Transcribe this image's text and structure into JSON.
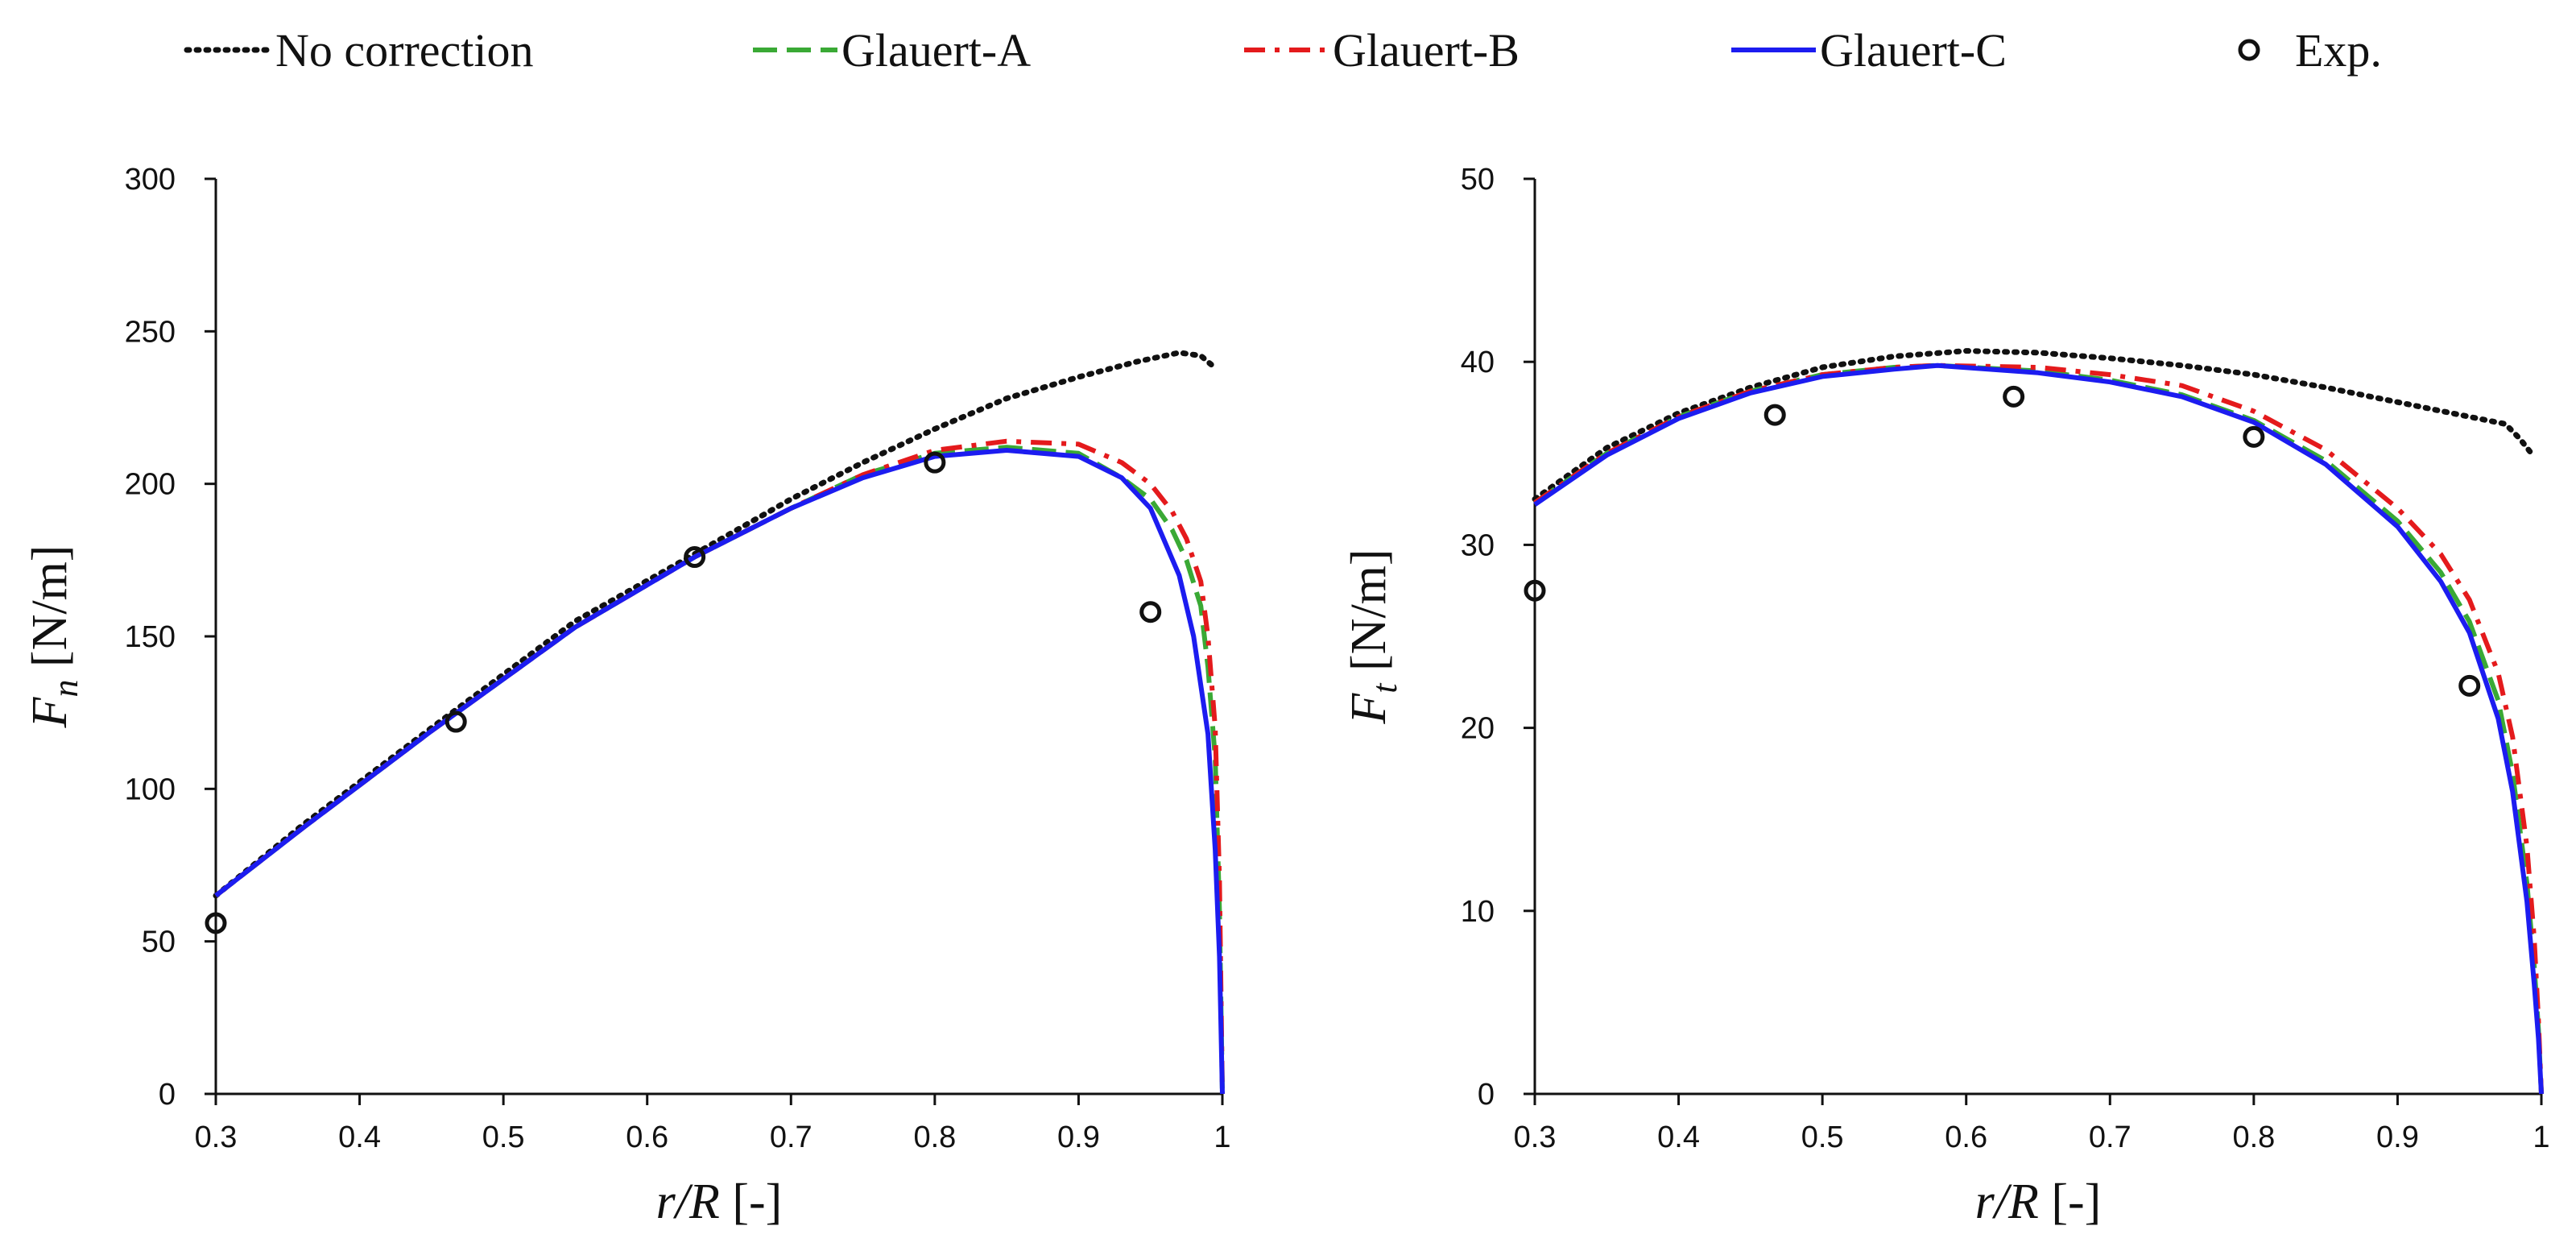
{
  "legend": [
    {
      "label": "No correction",
      "color": "#111111",
      "dash": "dotted"
    },
    {
      "label": "Glauert-A",
      "color": "#3aa935",
      "dash": "longdash"
    },
    {
      "label": "Glauert-B",
      "color": "#e41a1c",
      "dash": "dashdot"
    },
    {
      "label": "Glauert-C",
      "color": "#1c1cf0",
      "dash": "solid"
    },
    {
      "label": "Exp.",
      "color": "#111111",
      "dash": "marker"
    }
  ],
  "chart_data": [
    {
      "type": "line",
      "title": "",
      "xlabel_var": "r/R",
      "xlabel_unit": "[-]",
      "ylabel_var": "F",
      "ylabel_sub": "n",
      "ylabel_unit": "[N/m]",
      "xlim": [
        0.3,
        1.0
      ],
      "ylim": [
        0,
        300
      ],
      "xticks": [
        0.3,
        0.4,
        0.5,
        0.6,
        0.7,
        0.8,
        0.9,
        1
      ],
      "xtick_labels": [
        "0.3",
        "0.4",
        "0.5",
        "0.6",
        "0.7",
        "0.8",
        "0.9",
        "1"
      ],
      "yticks": [
        0,
        50,
        100,
        150,
        200,
        250,
        300
      ],
      "ytick_labels": [
        "0",
        "50",
        "100",
        "150",
        "200",
        "250",
        "300"
      ],
      "series": [
        {
          "name": "No correction",
          "x": [
            0.3,
            0.36,
            0.45,
            0.55,
            0.633,
            0.7,
            0.75,
            0.8,
            0.85,
            0.9,
            0.94,
            0.97,
            0.985,
            0.995
          ],
          "y": [
            65,
            88,
            120,
            155,
            177,
            195,
            207,
            218,
            228,
            235,
            240,
            243,
            242,
            238
          ]
        },
        {
          "name": "Glauert-A",
          "x": [
            0.3,
            0.36,
            0.45,
            0.55,
            0.633,
            0.7,
            0.75,
            0.8,
            0.85,
            0.9,
            0.93,
            0.95,
            0.965,
            0.975,
            0.985,
            0.99,
            0.995,
            0.998,
            1.0
          ],
          "y": [
            65,
            87,
            119,
            153,
            176,
            192,
            203,
            210,
            212,
            210,
            202,
            195,
            185,
            175,
            160,
            140,
            110,
            60,
            0
          ]
        },
        {
          "name": "Glauert-B",
          "x": [
            0.3,
            0.36,
            0.45,
            0.55,
            0.633,
            0.7,
            0.75,
            0.8,
            0.85,
            0.9,
            0.93,
            0.95,
            0.965,
            0.975,
            0.985,
            0.99,
            0.995,
            0.998,
            1.0
          ],
          "y": [
            65,
            87,
            119,
            153,
            176,
            192,
            203,
            211,
            214,
            213,
            207,
            200,
            191,
            182,
            168,
            150,
            120,
            70,
            0
          ]
        },
        {
          "name": "Glauert-C",
          "x": [
            0.3,
            0.36,
            0.45,
            0.55,
            0.633,
            0.7,
            0.75,
            0.8,
            0.85,
            0.9,
            0.93,
            0.95,
            0.97,
            0.98,
            0.99,
            0.995,
            0.998,
            1.0
          ],
          "y": [
            65,
            87,
            119,
            153,
            176,
            192,
            202,
            209,
            211,
            209,
            202,
            192,
            170,
            150,
            118,
            80,
            45,
            0
          ]
        }
      ],
      "experimental": {
        "name": "Exp.",
        "x": [
          0.3,
          0.467,
          0.633,
          0.8,
          0.95
        ],
        "y": [
          56,
          122,
          176,
          207,
          158
        ]
      }
    },
    {
      "type": "line",
      "title": "",
      "xlabel_var": "r/R",
      "xlabel_unit": "[-]",
      "ylabel_var": "F",
      "ylabel_sub": "t",
      "ylabel_unit": "[N/m]",
      "xlim": [
        0.3,
        1.0
      ],
      "ylim": [
        0,
        50
      ],
      "xticks": [
        0.3,
        0.4,
        0.5,
        0.6,
        0.7,
        0.8,
        0.9,
        1
      ],
      "xtick_labels": [
        "0.3",
        "0.4",
        "0.5",
        "0.6",
        "0.7",
        "0.8",
        "0.9",
        "1"
      ],
      "yticks": [
        0,
        10,
        20,
        30,
        40,
        50
      ],
      "ytick_labels": [
        "0",
        "10",
        "20",
        "30",
        "40",
        "50"
      ],
      "series": [
        {
          "name": "No correction",
          "x": [
            0.3,
            0.35,
            0.4,
            0.45,
            0.5,
            0.55,
            0.6,
            0.65,
            0.7,
            0.75,
            0.8,
            0.85,
            0.9,
            0.95,
            0.975,
            0.985,
            0.995
          ],
          "y": [
            32.5,
            35.3,
            37.2,
            38.6,
            39.7,
            40.3,
            40.6,
            40.5,
            40.2,
            39.8,
            39.3,
            38.6,
            37.8,
            37.0,
            36.6,
            35.8,
            34.8
          ]
        },
        {
          "name": "Glauert-A",
          "x": [
            0.3,
            0.35,
            0.4,
            0.45,
            0.5,
            0.55,
            0.58,
            0.65,
            0.7,
            0.75,
            0.8,
            0.85,
            0.9,
            0.93,
            0.95,
            0.97,
            0.98,
            0.99,
            0.995,
            0.998,
            1.0
          ],
          "y": [
            32.3,
            35.0,
            37.0,
            38.4,
            39.3,
            39.7,
            39.8,
            39.5,
            39.0,
            38.2,
            36.8,
            34.6,
            31.3,
            28.5,
            25.8,
            21.5,
            17.5,
            11.5,
            7.0,
            3.5,
            0
          ]
        },
        {
          "name": "Glauert-B",
          "x": [
            0.3,
            0.35,
            0.4,
            0.45,
            0.5,
            0.55,
            0.58,
            0.65,
            0.7,
            0.75,
            0.8,
            0.85,
            0.9,
            0.93,
            0.95,
            0.97,
            0.98,
            0.99,
            0.995,
            0.998,
            1.0
          ],
          "y": [
            32.3,
            35.0,
            37.0,
            38.4,
            39.3,
            39.7,
            39.8,
            39.7,
            39.3,
            38.7,
            37.3,
            35.2,
            32.0,
            29.5,
            27.0,
            23.0,
            19.5,
            13.5,
            8.5,
            4.0,
            0
          ]
        },
        {
          "name": "Glauert-C",
          "x": [
            0.3,
            0.35,
            0.4,
            0.45,
            0.5,
            0.55,
            0.58,
            0.65,
            0.7,
            0.75,
            0.8,
            0.85,
            0.9,
            0.93,
            0.95,
            0.97,
            0.98,
            0.99,
            0.995,
            0.998,
            1.0
          ],
          "y": [
            32.2,
            34.9,
            36.9,
            38.3,
            39.2,
            39.6,
            39.8,
            39.4,
            38.9,
            38.1,
            36.7,
            34.4,
            31.0,
            28.0,
            25.2,
            20.5,
            16.5,
            10.5,
            6.0,
            3.0,
            0
          ]
        }
      ],
      "experimental": {
        "name": "Exp.",
        "x": [
          0.3,
          0.467,
          0.633,
          0.8,
          0.95
        ],
        "y": [
          27.5,
          37.1,
          38.1,
          35.9,
          22.3
        ]
      }
    }
  ]
}
